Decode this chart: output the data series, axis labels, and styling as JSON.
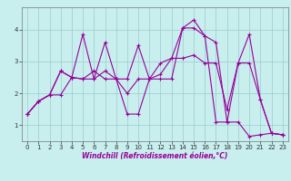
{
  "title": "",
  "xlabel": "Windchill (Refroidissement éolien,°C)",
  "background_color": "#c8eeee",
  "line_color": "#990099",
  "grid_color": "#99cccc",
  "xlim": [
    -0.5,
    23.5
  ],
  "ylim": [
    0.5,
    4.7
  ],
  "yticks": [
    1,
    2,
    3,
    4
  ],
  "xticks": [
    0,
    1,
    2,
    3,
    4,
    5,
    6,
    7,
    8,
    9,
    10,
    11,
    12,
    13,
    14,
    15,
    16,
    17,
    18,
    19,
    20,
    21,
    22,
    23
  ],
  "series": [
    [
      1.35,
      1.75,
      1.95,
      1.95,
      2.5,
      3.85,
      2.45,
      3.6,
      2.45,
      2.45,
      3.5,
      2.45,
      2.95,
      3.1,
      4.05,
      4.3,
      3.8,
      3.6,
      1.1,
      2.95,
      3.85,
      1.8,
      0.75,
      0.7
    ],
    [
      1.35,
      1.75,
      1.95,
      2.7,
      2.5,
      2.45,
      2.45,
      2.7,
      2.45,
      1.35,
      1.35,
      2.45,
      2.45,
      2.45,
      4.05,
      4.05,
      3.8,
      1.1,
      1.1,
      1.1,
      0.65,
      0.7,
      0.75,
      0.7
    ],
    [
      1.35,
      1.75,
      1.95,
      2.7,
      2.5,
      2.45,
      2.7,
      2.45,
      2.45,
      2.0,
      2.45,
      2.45,
      2.6,
      3.1,
      3.1,
      3.2,
      2.95,
      2.95,
      1.5,
      2.95,
      2.95,
      1.8,
      0.75,
      0.7
    ]
  ],
  "xlabel_fontsize": 5.5,
  "tick_fontsize": 5.0,
  "linewidth": 0.8,
  "markersize": 3.0
}
